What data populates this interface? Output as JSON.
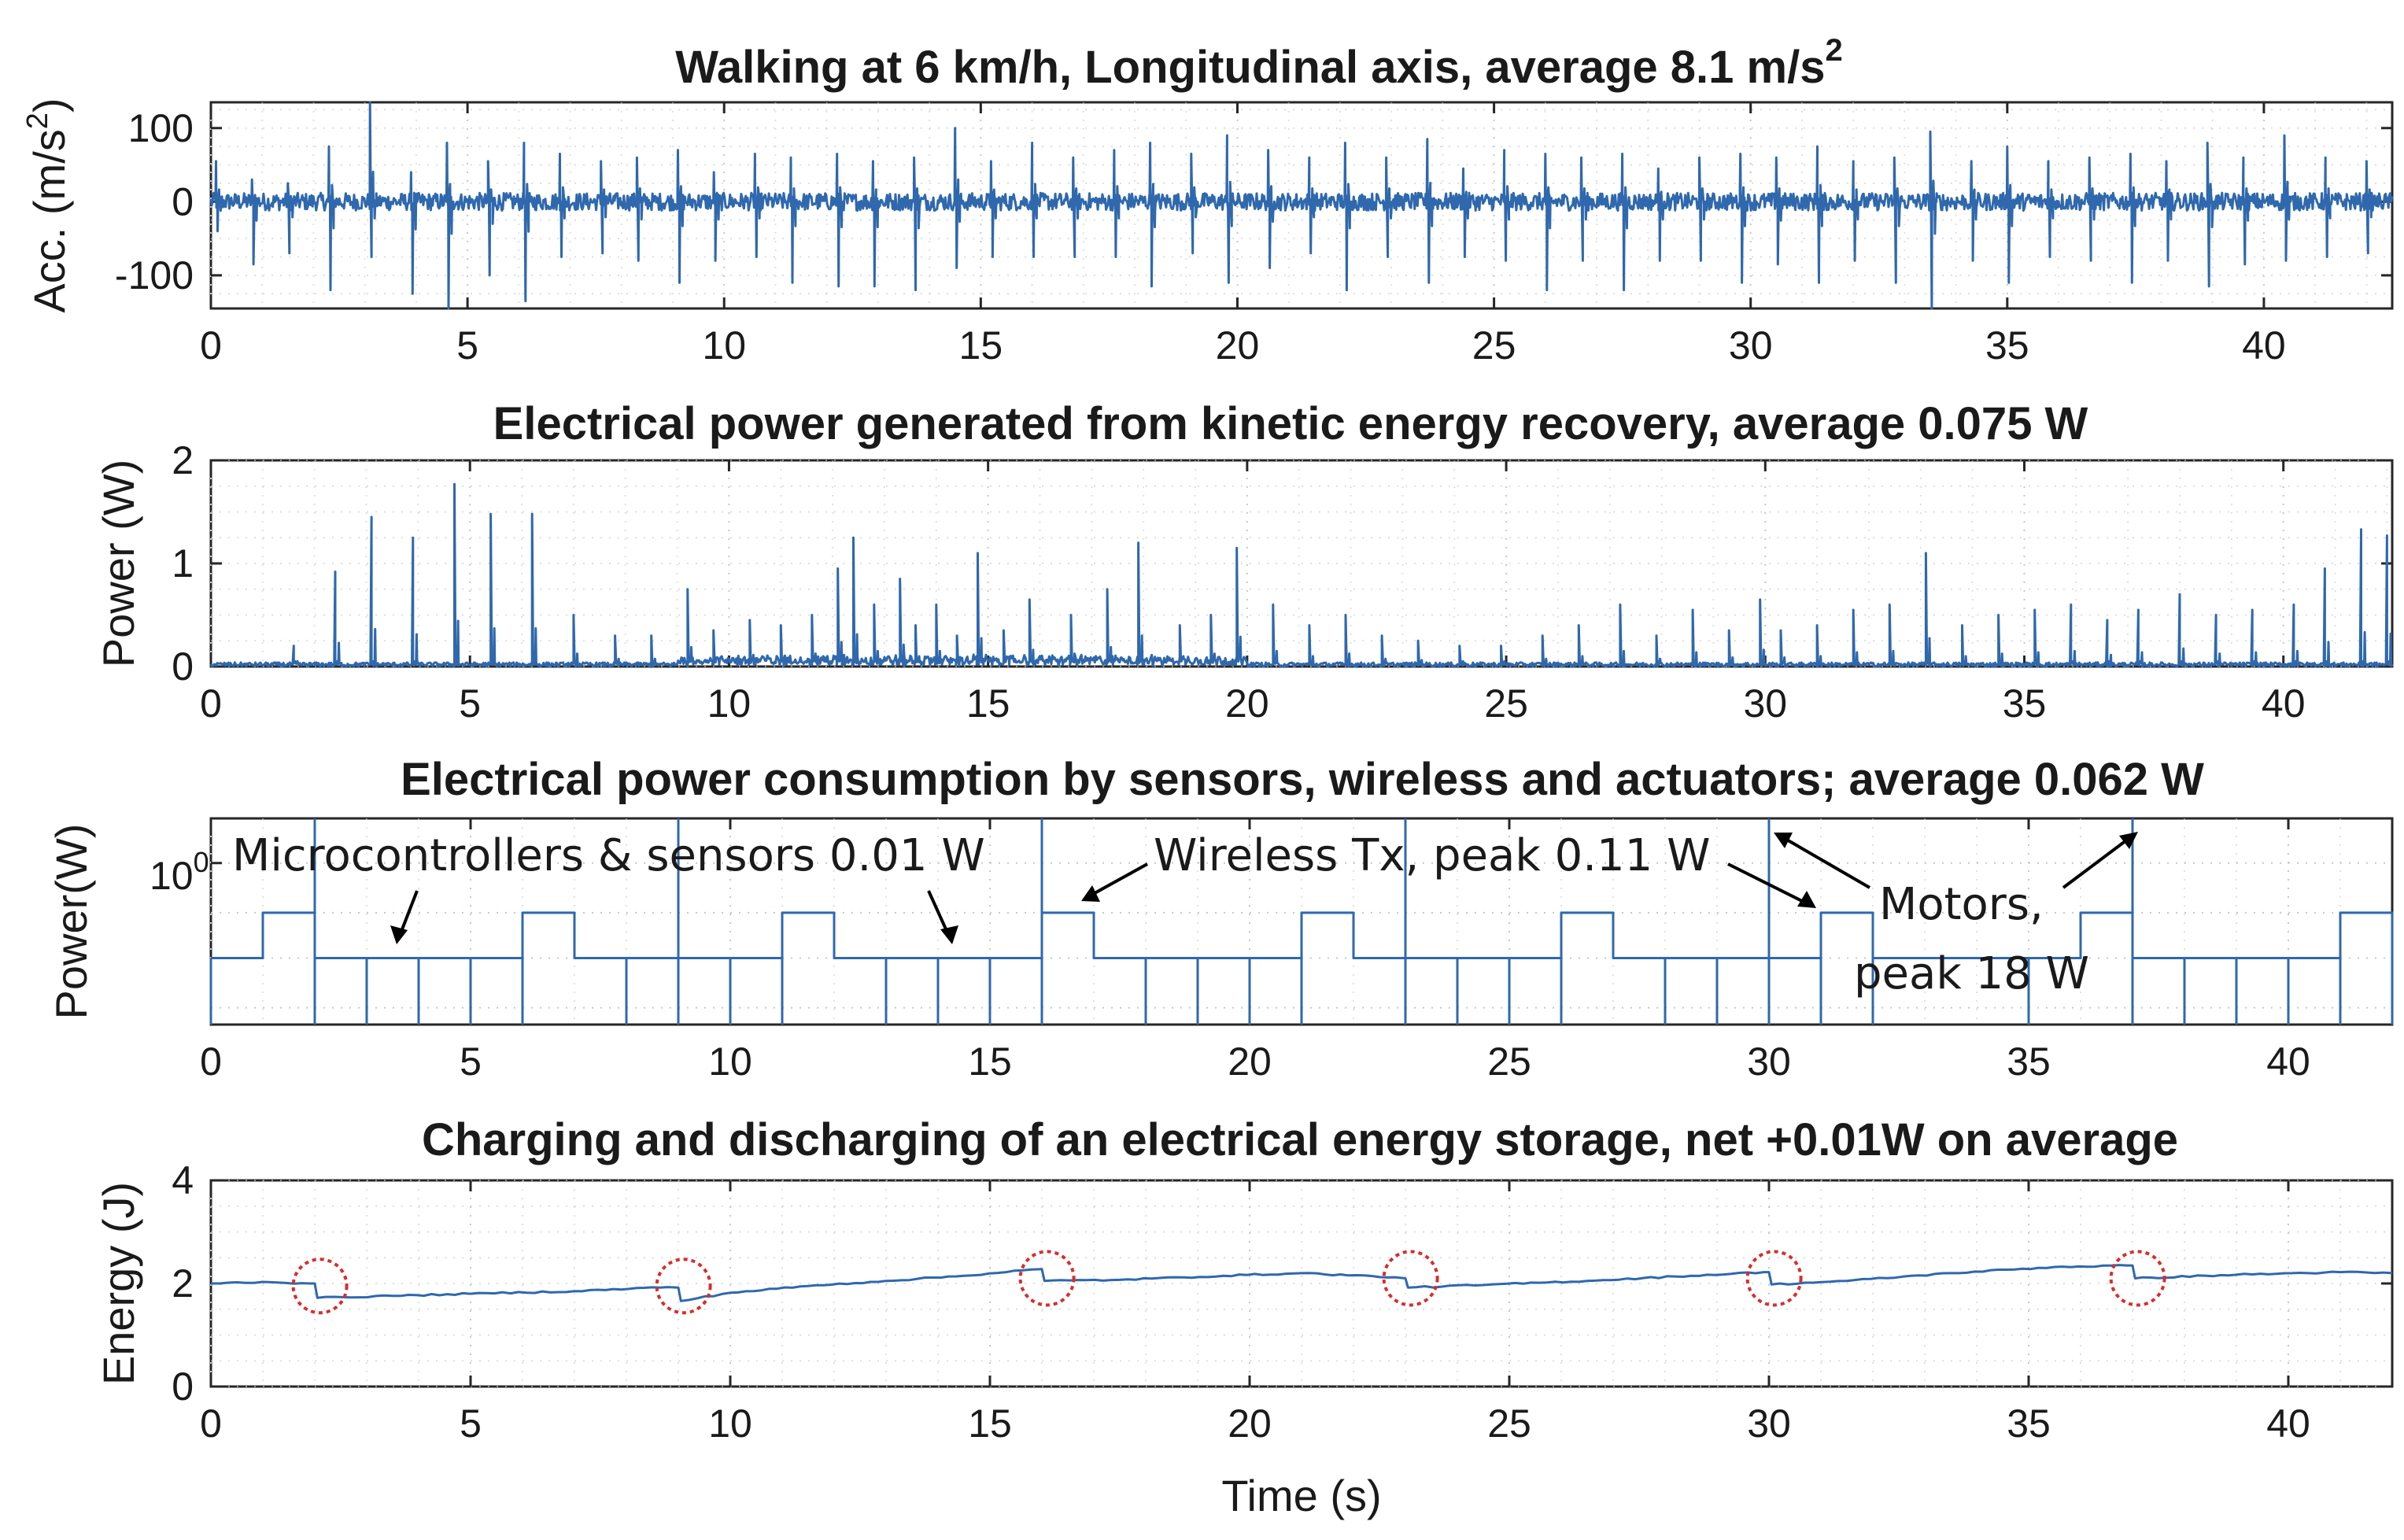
{
  "chart_data": [
    {
      "type": "line",
      "title": "Walking at 6 km/h, Longitudinal axis, average 8.1 m/s",
      "title_superscript": "2",
      "ylabel": "Acc. (m/s",
      "ylabel_superscript": "2",
      "ylabel_suffix": ")",
      "xlabel": "",
      "xlim": [
        0,
        42.5
      ],
      "ylim": [
        -145,
        135
      ],
      "xticks": [
        0,
        5,
        10,
        15,
        20,
        25,
        30,
        35,
        40
      ],
      "yticks": [
        -100,
        0,
        100
      ],
      "grid": true,
      "series": [
        {
          "name": "acceleration",
          "color": "#2f68ad",
          "baseline_noise": 12,
          "spikes": [
            {
              "t": 0.1,
              "up": 55,
              "down": -40
            },
            {
              "t": 0.8,
              "up": 30,
              "down": -85
            },
            {
              "t": 1.5,
              "up": 25,
              "down": -70
            },
            {
              "t": 2.3,
              "up": 75,
              "down": -120
            },
            {
              "t": 3.1,
              "up": 135,
              "down": -75
            },
            {
              "t": 3.9,
              "up": 40,
              "down": -125
            },
            {
              "t": 4.6,
              "up": 80,
              "down": -145
            },
            {
              "t": 5.4,
              "up": 55,
              "down": -100
            },
            {
              "t": 6.1,
              "up": 80,
              "down": -135
            },
            {
              "t": 6.8,
              "up": 65,
              "down": -75
            },
            {
              "t": 7.6,
              "up": 55,
              "down": -70
            },
            {
              "t": 8.3,
              "up": 60,
              "down": -80
            },
            {
              "t": 9.1,
              "up": 70,
              "down": -110
            },
            {
              "t": 9.8,
              "up": 40,
              "down": -80
            },
            {
              "t": 10.6,
              "up": 65,
              "down": -75
            },
            {
              "t": 11.3,
              "up": 60,
              "down": -110
            },
            {
              "t": 12.2,
              "up": 65,
              "down": -115
            },
            {
              "t": 12.9,
              "up": 55,
              "down": -115
            },
            {
              "t": 13.7,
              "up": 60,
              "down": -120
            },
            {
              "t": 14.5,
              "up": 100,
              "down": -90
            },
            {
              "t": 15.2,
              "up": 55,
              "down": -75
            },
            {
              "t": 16.0,
              "up": 80,
              "down": -75
            },
            {
              "t": 16.8,
              "up": 60,
              "down": -75
            },
            {
              "t": 17.6,
              "up": 70,
              "down": -75
            },
            {
              "t": 18.3,
              "up": 80,
              "down": -115
            },
            {
              "t": 19.1,
              "up": 65,
              "down": -70
            },
            {
              "t": 19.8,
              "up": 90,
              "down": -110
            },
            {
              "t": 20.6,
              "up": 70,
              "down": -90
            },
            {
              "t": 21.4,
              "up": 60,
              "down": -70
            },
            {
              "t": 22.1,
              "up": 80,
              "down": -120
            },
            {
              "t": 22.9,
              "up": 60,
              "down": -75
            },
            {
              "t": 23.7,
              "up": 85,
              "down": -110
            },
            {
              "t": 24.4,
              "up": 45,
              "down": -75
            },
            {
              "t": 25.2,
              "up": 70,
              "down": -80
            },
            {
              "t": 26.0,
              "up": 65,
              "down": -120
            },
            {
              "t": 26.7,
              "up": 60,
              "down": -80
            },
            {
              "t": 27.5,
              "up": 65,
              "down": -120
            },
            {
              "t": 28.2,
              "up": 45,
              "down": -80
            },
            {
              "t": 29.0,
              "up": 60,
              "down": -80
            },
            {
              "t": 29.8,
              "up": 65,
              "down": -110
            },
            {
              "t": 30.5,
              "up": 60,
              "down": -85
            },
            {
              "t": 31.3,
              "up": 75,
              "down": -110
            },
            {
              "t": 32.0,
              "up": 55,
              "down": -80
            },
            {
              "t": 32.8,
              "up": 60,
              "down": -110
            },
            {
              "t": 33.5,
              "up": 95,
              "down": -145
            },
            {
              "t": 34.3,
              "up": 55,
              "down": -80
            },
            {
              "t": 35.0,
              "up": 75,
              "down": -110
            },
            {
              "t": 35.8,
              "up": 55,
              "down": -75
            },
            {
              "t": 36.6,
              "up": 60,
              "down": -80
            },
            {
              "t": 37.4,
              "up": 65,
              "down": -110
            },
            {
              "t": 38.1,
              "up": 55,
              "down": -80
            },
            {
              "t": 38.9,
              "up": 80,
              "down": -115
            },
            {
              "t": 39.6,
              "up": 60,
              "down": -85
            },
            {
              "t": 40.4,
              "up": 90,
              "down": -80
            },
            {
              "t": 41.2,
              "up": 60,
              "down": -75
            },
            {
              "t": 42.0,
              "up": 55,
              "down": -70
            }
          ]
        }
      ]
    },
    {
      "type": "line",
      "title": "Electrical power generated from kinetic energy recovery, average 0.075 W",
      "ylabel": "Power (W)",
      "xlabel": "",
      "xlim": [
        0,
        42.1
      ],
      "ylim": [
        0,
        2
      ],
      "xticks": [
        0,
        5,
        10,
        15,
        20,
        25,
        30,
        35,
        40
      ],
      "yticks": [
        0,
        1,
        2
      ],
      "grid": true,
      "series": [
        {
          "name": "generated power",
          "color": "#2f68ad",
          "baseline_noise": 0.04,
          "spikes": [
            {
              "t": 1.6,
              "v": 0.2
            },
            {
              "t": 2.4,
              "v": 0.92
            },
            {
              "t": 3.1,
              "v": 1.45
            },
            {
              "t": 3.9,
              "v": 1.25
            },
            {
              "t": 4.7,
              "v": 1.77
            },
            {
              "t": 5.4,
              "v": 1.48
            },
            {
              "t": 6.2,
              "v": 1.48
            },
            {
              "t": 7.0,
              "v": 0.5
            },
            {
              "t": 7.8,
              "v": 0.3
            },
            {
              "t": 8.5,
              "v": 0.3
            },
            {
              "t": 9.2,
              "v": 0.75
            },
            {
              "t": 9.7,
              "v": 0.35
            },
            {
              "t": 10.4,
              "v": 0.45
            },
            {
              "t": 11.0,
              "v": 0.4
            },
            {
              "t": 11.6,
              "v": 0.5
            },
            {
              "t": 12.1,
              "v": 0.95
            },
            {
              "t": 12.4,
              "v": 1.25
            },
            {
              "t": 12.8,
              "v": 0.6
            },
            {
              "t": 13.3,
              "v": 0.85
            },
            {
              "t": 13.6,
              "v": 0.4
            },
            {
              "t": 14.0,
              "v": 0.6
            },
            {
              "t": 14.4,
              "v": 0.3
            },
            {
              "t": 14.8,
              "v": 1.1
            },
            {
              "t": 15.3,
              "v": 0.35
            },
            {
              "t": 15.8,
              "v": 0.65
            },
            {
              "t": 16.6,
              "v": 0.5
            },
            {
              "t": 17.3,
              "v": 0.75
            },
            {
              "t": 17.9,
              "v": 1.2
            },
            {
              "t": 18.7,
              "v": 0.4
            },
            {
              "t": 19.3,
              "v": 0.5
            },
            {
              "t": 19.8,
              "v": 1.15
            },
            {
              "t": 20.5,
              "v": 0.6
            },
            {
              "t": 21.2,
              "v": 0.4
            },
            {
              "t": 21.9,
              "v": 0.5
            },
            {
              "t": 22.6,
              "v": 0.3
            },
            {
              "t": 23.3,
              "v": 0.25
            },
            {
              "t": 24.1,
              "v": 0.2
            },
            {
              "t": 24.9,
              "v": 0.2
            },
            {
              "t": 25.7,
              "v": 0.3
            },
            {
              "t": 26.4,
              "v": 0.4
            },
            {
              "t": 27.2,
              "v": 0.6
            },
            {
              "t": 27.9,
              "v": 0.3
            },
            {
              "t": 28.6,
              "v": 0.55
            },
            {
              "t": 29.3,
              "v": 0.35
            },
            {
              "t": 29.9,
              "v": 0.65
            },
            {
              "t": 30.3,
              "v": 0.35
            },
            {
              "t": 31.0,
              "v": 0.4
            },
            {
              "t": 31.7,
              "v": 0.55
            },
            {
              "t": 32.4,
              "v": 0.6
            },
            {
              "t": 33.1,
              "v": 1.1
            },
            {
              "t": 33.8,
              "v": 0.4
            },
            {
              "t": 34.5,
              "v": 0.5
            },
            {
              "t": 35.2,
              "v": 0.55
            },
            {
              "t": 35.9,
              "v": 0.6
            },
            {
              "t": 36.6,
              "v": 0.45
            },
            {
              "t": 37.2,
              "v": 0.55
            },
            {
              "t": 38.0,
              "v": 0.7
            },
            {
              "t": 38.7,
              "v": 0.5
            },
            {
              "t": 39.4,
              "v": 0.55
            },
            {
              "t": 40.2,
              "v": 0.6
            },
            {
              "t": 40.8,
              "v": 0.95
            },
            {
              "t": 41.5,
              "v": 1.33
            },
            {
              "t": 42.0,
              "v": 1.27
            }
          ]
        }
      ]
    },
    {
      "type": "line",
      "title": "Electrical power consumption by sensors, wireless and actuators; average 0.062 W",
      "ylabel": "Power(W)",
      "xlabel": "",
      "yscale": "log",
      "xlim": [
        0,
        42
      ],
      "ylim_decades": [
        -1.7,
        0.47
      ],
      "xticks": [
        0,
        5,
        10,
        15,
        20,
        25,
        30,
        35,
        40
      ],
      "ytick_label_base": "10",
      "ytick_label_exponent": "0",
      "grid": true,
      "levels": {
        "base": 0.1,
        "sensors": 0.01,
        "wireless": 0.11,
        "wireless_plot_level": 0.3,
        "motors": 18
      },
      "series": [
        {
          "name": "consumption",
          "color": "#2f68ad",
          "tx_windows": [
            [
              1,
              2
            ],
            [
              6,
              7
            ],
            [
              11,
              12
            ],
            [
              16,
              17
            ],
            [
              21,
              22
            ],
            [
              26,
              27
            ],
            [
              31,
              32
            ],
            [
              36,
              37
            ],
            [
              41,
              42
            ]
          ],
          "motor_spikes": [
            2,
            9,
            16,
            23,
            30,
            37
          ],
          "sensor_dips": [
            0,
            3,
            4,
            5,
            6,
            8,
            10,
            11,
            13,
            14,
            15,
            18,
            19,
            20,
            21,
            24,
            25,
            26,
            28,
            29,
            31,
            32,
            35,
            38,
            39,
            40,
            41,
            42
          ]
        }
      ],
      "annotations": [
        {
          "text": "Microcontrollers & sensors 0.01 W"
        },
        {
          "text": "Wireless Tx, peak 0.11 W"
        },
        {
          "text": "Motors,"
        },
        {
          "text": "peak 18 W"
        }
      ]
    },
    {
      "type": "line",
      "title": "Charging and discharging of an electrical energy storage, net +0.01W on average",
      "ylabel": "Energy (J)",
      "xlabel": "Time (s)",
      "xlim": [
        0,
        42
      ],
      "ylim": [
        0,
        4
      ],
      "xticks": [
        0,
        5,
        10,
        15,
        20,
        25,
        30,
        35,
        40
      ],
      "yticks": [
        0,
        2,
        4
      ],
      "grid": true,
      "series": [
        {
          "name": "stored energy",
          "color": "#2f68ad",
          "points": [
            [
              0,
              2.0
            ],
            [
              1.0,
              2.03
            ],
            [
              1.9,
              2.0
            ],
            [
              2.0,
              2.0
            ],
            [
              2.05,
              1.72
            ],
            [
              3.5,
              1.76
            ],
            [
              5.0,
              1.8
            ],
            [
              7.0,
              1.85
            ],
            [
              8.8,
              1.93
            ],
            [
              9.0,
              1.92
            ],
            [
              9.05,
              1.66
            ],
            [
              10.0,
              1.82
            ],
            [
              11.5,
              1.95
            ],
            [
              13.0,
              2.05
            ],
            [
              14.5,
              2.15
            ],
            [
              15.8,
              2.27
            ],
            [
              16.0,
              2.28
            ],
            [
              16.05,
              2.05
            ],
            [
              17.5,
              2.07
            ],
            [
              19.5,
              2.15
            ],
            [
              21.0,
              2.2
            ],
            [
              22.8,
              2.12
            ],
            [
              23.0,
              2.1
            ],
            [
              23.05,
              1.92
            ],
            [
              24.5,
              1.97
            ],
            [
              26.5,
              2.05
            ],
            [
              28.5,
              2.15
            ],
            [
              29.9,
              2.22
            ],
            [
              30.0,
              2.22
            ],
            [
              30.05,
              1.98
            ],
            [
              31.5,
              2.05
            ],
            [
              33.5,
              2.2
            ],
            [
              35.5,
              2.32
            ],
            [
              36.9,
              2.35
            ],
            [
              37.0,
              2.35
            ],
            [
              37.05,
              2.1
            ],
            [
              39.0,
              2.17
            ],
            [
              41.0,
              2.22
            ],
            [
              42.0,
              2.2
            ]
          ]
        }
      ],
      "discharge_markers": [
        2.1,
        9.1,
        16.1,
        23.1,
        30.1,
        37.1
      ]
    }
  ]
}
